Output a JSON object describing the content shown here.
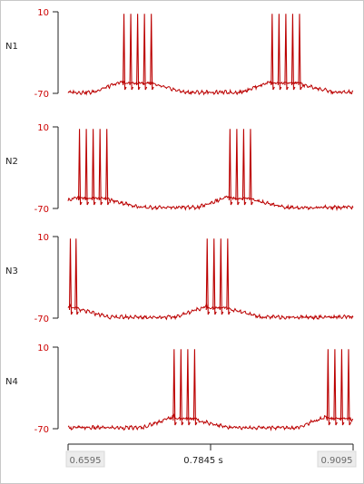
{
  "colors": {
    "trace": "#bb0000",
    "axis": "#222222",
    "tick_label": "#cc0000"
  },
  "chart_data": {
    "type": "line",
    "xlabel": "",
    "ylabel": "",
    "x_ticks": {
      "left": "0.6595",
      "center": "0.7845 s",
      "right": "0.9095"
    },
    "xlim": [
      0.6595,
      0.9095
    ],
    "grid": false,
    "series": [
      {
        "name": "N1",
        "ylim": [
          -70,
          10
        ],
        "ytick_top": "10",
        "ytick_bottom": "-70",
        "baseline": -70,
        "ramp_peak": -58,
        "bursts": [
          {
            "start": 0.7085,
            "spikes": [
              0.7085,
              0.7145,
              0.7205,
              0.7265,
              0.7325
            ]
          },
          {
            "start": 0.8385,
            "spikes": [
              0.8385,
              0.8445,
              0.8505,
              0.8565,
              0.8625
            ]
          }
        ]
      },
      {
        "name": "N2",
        "ylim": [
          -70,
          10
        ],
        "ytick_top": "10",
        "ytick_bottom": "-70",
        "baseline": -70,
        "ramp_peak": -58,
        "bursts": [
          {
            "start": 0.6695,
            "spikes": [
              0.6695,
              0.6755,
              0.6815,
              0.6875,
              0.6935
            ]
          },
          {
            "start": 0.8015,
            "spikes": [
              0.8015,
              0.8075,
              0.8135,
              0.8195
            ]
          }
        ]
      },
      {
        "name": "N3",
        "ylim": [
          -70,
          10
        ],
        "ytick_top": "10",
        "ytick_bottom": "-70",
        "baseline": -70,
        "ramp_peak": -58,
        "bursts": [
          {
            "start": 0.6615,
            "spikes": [
              0.6615,
              0.6665
            ]
          },
          {
            "start": 0.7815,
            "spikes": [
              0.7815,
              0.7875,
              0.7935,
              0.7995
            ]
          }
        ]
      },
      {
        "name": "N4",
        "ylim": [
          -70,
          10
        ],
        "ytick_top": "10",
        "ytick_bottom": "-70",
        "baseline": -70,
        "ramp_peak": -58,
        "bursts": [
          {
            "start": 0.7525,
            "spikes": [
              0.7525,
              0.7585,
              0.7645,
              0.7705
            ]
          },
          {
            "start": 0.8875,
            "spikes": [
              0.8875,
              0.8935,
              0.8995,
              0.9055
            ]
          }
        ]
      }
    ]
  }
}
